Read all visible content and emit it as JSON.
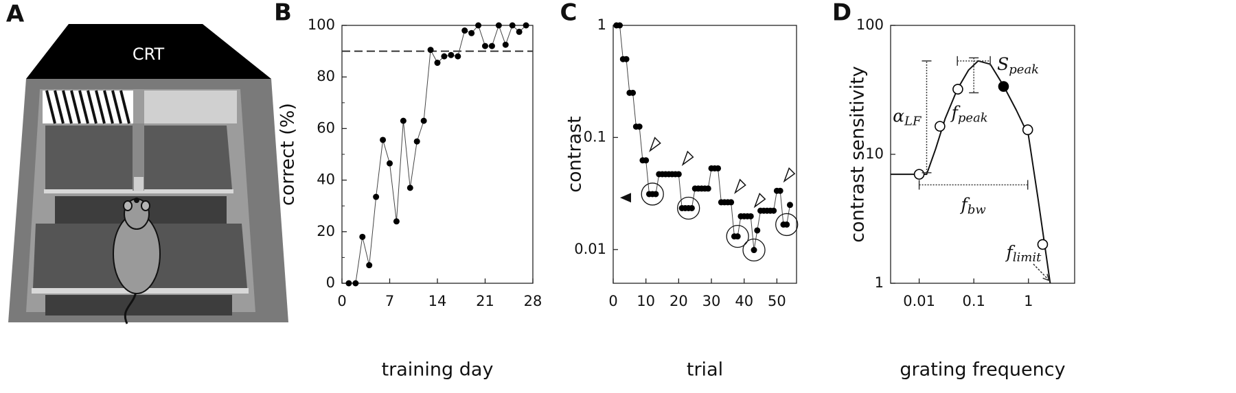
{
  "illustration": {
    "label": "A",
    "screen_label": "CRT"
  },
  "chart_data": [
    {
      "type": "line",
      "panel_label": "B",
      "xlabel": "training day",
      "ylabel": "correct (%)",
      "x": [
        1,
        2,
        3,
        4,
        5,
        6,
        7,
        8,
        9,
        10,
        11,
        12,
        13,
        14,
        15,
        16,
        17,
        18,
        19,
        20,
        21,
        22,
        23,
        24,
        25,
        26,
        27
      ],
      "values": [
        0,
        0,
        18,
        7,
        33.5,
        55.6,
        46.5,
        24,
        63,
        37,
        55,
        63,
        90.5,
        85.5,
        88,
        88.5,
        88,
        98,
        97,
        100,
        92,
        92,
        100,
        92.5,
        100,
        97.5,
        100
      ],
      "color": "#000000",
      "xlim": [
        0,
        28
      ],
      "xticks": [
        0,
        7,
        14,
        21,
        28
      ],
      "ylim": [
        0,
        100
      ],
      "yticks": [
        0,
        20,
        40,
        60,
        80,
        100
      ],
      "minor_yticks": [
        10,
        30,
        50,
        70,
        90
      ],
      "reference_line": 90
    },
    {
      "type": "line",
      "panel_label": "C",
      "xlabel": "trial",
      "ylabel": "contrast",
      "log_y": true,
      "x": [
        1,
        2,
        3,
        4,
        5,
        6,
        7,
        8,
        9,
        10,
        11,
        12,
        13,
        14,
        15,
        16,
        17,
        18,
        19,
        20,
        21,
        22,
        23,
        24,
        25,
        26,
        27,
        28,
        29,
        30,
        31,
        32,
        33,
        34,
        35,
        36,
        37,
        38,
        39,
        40,
        41,
        42,
        43,
        44,
        45,
        46,
        47,
        48,
        49,
        50,
        51,
        52,
        53,
        54
      ],
      "values": [
        1,
        1,
        0.5,
        0.5,
        0.25,
        0.25,
        0.125,
        0.125,
        0.0625,
        0.0625,
        0.03125,
        0.03125,
        0.03125,
        0.047,
        0.047,
        0.047,
        0.047,
        0.047,
        0.047,
        0.047,
        0.0234,
        0.0234,
        0.0234,
        0.0234,
        0.035,
        0.035,
        0.035,
        0.035,
        0.035,
        0.053,
        0.053,
        0.053,
        0.0264,
        0.0264,
        0.0264,
        0.0264,
        0.0131,
        0.0131,
        0.0198,
        0.0198,
        0.0198,
        0.0198,
        0.0099,
        0.0148,
        0.0222,
        0.0222,
        0.0222,
        0.0222,
        0.0222,
        0.0334,
        0.0334,
        0.0167,
        0.0167,
        0.025
      ],
      "color": "#000000",
      "xlim": [
        0,
        56
      ],
      "xticks": [
        0,
        10,
        20,
        30,
        40,
        50
      ],
      "ylim": [
        0.005,
        1
      ],
      "yticks": [
        0.01,
        0.1,
        1
      ],
      "threshold": 0.029,
      "reversals": [
        9,
        19,
        35,
        41,
        50
      ],
      "circled": [
        11,
        22,
        37,
        42,
        52
      ]
    },
    {
      "type": "scatter",
      "panel_label": "D",
      "xlabel": "grating frequency",
      "ylabel": "contrast sensitivity",
      "log_x": true,
      "log_y": true,
      "x": [
        0.01,
        0.024,
        0.051,
        0.35,
        0.97,
        1.82
      ],
      "values": [
        7,
        16.5,
        32,
        33.6,
        15.5,
        2.0
      ],
      "filled": [
        3
      ],
      "color": "#000000",
      "fit": {
        "x": [
          0.003,
          0.0137,
          0.02,
          0.03,
          0.05,
          0.08,
          0.12,
          0.2,
          0.35,
          0.6,
          1,
          1.5,
          2.5
        ],
        "y": [
          7,
          7,
          11,
          19,
          32,
          45,
          53,
          50,
          34,
          22,
          14,
          4.5,
          1
        ]
      },
      "xlim": [
        0.003,
        7
      ],
      "xticks": [
        0.01,
        0.1,
        1
      ],
      "ylim": [
        1,
        100
      ],
      "yticks": [
        1,
        10,
        100
      ],
      "annotations": [
        {
          "text": "α",
          "sub": "LF",
          "x": [
            0.0137,
            0.0137
          ],
          "y": [
            7.2,
            53
          ]
        },
        {
          "text": "f",
          "sub": "peak",
          "x": [
            0.1,
            0.1
          ],
          "y": [
            56,
            30
          ]
        },
        {
          "text": "S",
          "sub": "peak",
          "x": [
            0.05,
            0.2
          ],
          "y": [
            53,
            53
          ]
        },
        {
          "text": "f",
          "sub": "bw",
          "x": [
            0.01,
            0.97
          ],
          "y": [
            5.8,
            5.8
          ]
        },
        {
          "text": "f",
          "sub": "limit",
          "x": [
            1.23,
            2.4
          ],
          "y": [
            1.41,
            1.05
          ],
          "arrow": true
        }
      ]
    }
  ]
}
